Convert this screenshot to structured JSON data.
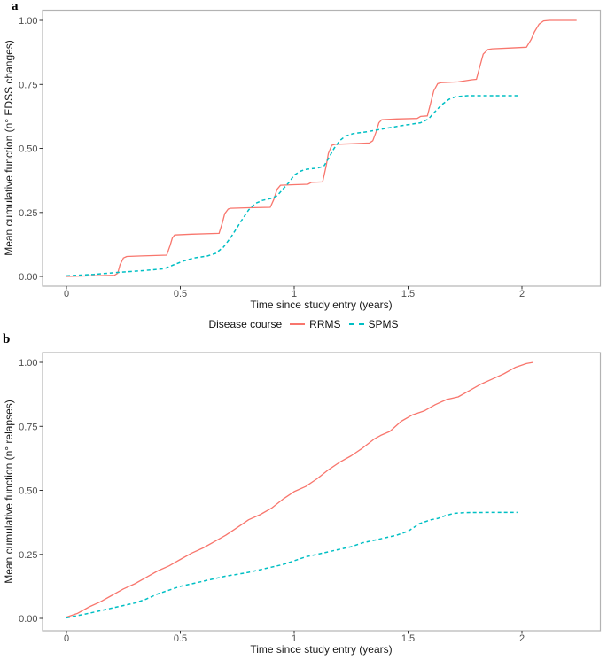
{
  "chart_data": {
    "type": "line",
    "figure_kind": "mean cumulative function step/line plot, two stacked panels",
    "legend": {
      "title": "Disease course",
      "entries": [
        {
          "label": "RRMS",
          "color": "#F8766D",
          "line_style": "solid"
        },
        {
          "label": "SPMS",
          "color": "#00BFC4",
          "line_style": "dashed"
        }
      ]
    },
    "panels": [
      {
        "panel_label": "a",
        "xlabel": "Time since study entry (years)",
        "ylabel": "Mean cumulative function (n° EDSS changes)",
        "xlim": [
          -0.105,
          2.345
        ],
        "ylim": [
          -0.038,
          1.039
        ],
        "grid": false,
        "x_ticks": [
          {
            "value": 0,
            "label": "0"
          },
          {
            "value": 0.5,
            "label": "0.5"
          },
          {
            "value": 1,
            "label": "1"
          },
          {
            "value": 1.5,
            "label": "1.5"
          },
          {
            "value": 2,
            "label": "2"
          }
        ],
        "y_ticks": [
          {
            "value": 0,
            "label": "0.00"
          },
          {
            "value": 0.25,
            "label": "0.25"
          },
          {
            "value": 0.5,
            "label": "0.50"
          },
          {
            "value": 0.75,
            "label": "0.75"
          },
          {
            "value": 1,
            "label": "1.00"
          }
        ],
        "series": [
          {
            "name": "RRMS",
            "color": "#F8766D",
            "line_style": "solid",
            "points": [
              [
                0,
                0
              ],
              [
                0.1,
                0.002
              ],
              [
                0.21,
                0.004
              ],
              [
                0.225,
                0.012
              ],
              [
                0.235,
                0.045
              ],
              [
                0.25,
                0.072
              ],
              [
                0.265,
                0.078
              ],
              [
                0.33,
                0.08
              ],
              [
                0.44,
                0.083
              ],
              [
                0.455,
                0.12
              ],
              [
                0.465,
                0.15
              ],
              [
                0.475,
                0.162
              ],
              [
                0.55,
                0.165
              ],
              [
                0.67,
                0.168
              ],
              [
                0.685,
                0.21
              ],
              [
                0.695,
                0.245
              ],
              [
                0.71,
                0.263
              ],
              [
                0.72,
                0.266
              ],
              [
                0.8,
                0.268
              ],
              [
                0.895,
                0.27
              ],
              [
                0.91,
                0.3
              ],
              [
                0.925,
                0.34
              ],
              [
                0.94,
                0.356
              ],
              [
                1.0,
                0.358
              ],
              [
                1.06,
                0.36
              ],
              [
                1.075,
                0.367
              ],
              [
                1.125,
                0.369
              ],
              [
                1.14,
                0.43
              ],
              [
                1.15,
                0.48
              ],
              [
                1.165,
                0.512
              ],
              [
                1.18,
                0.516
              ],
              [
                1.25,
                0.518
              ],
              [
                1.33,
                0.521
              ],
              [
                1.345,
                0.53
              ],
              [
                1.36,
                0.565
              ],
              [
                1.372,
                0.6
              ],
              [
                1.385,
                0.612
              ],
              [
                1.45,
                0.615
              ],
              [
                1.54,
                0.617
              ],
              [
                1.555,
                0.625
              ],
              [
                1.585,
                0.627
              ],
              [
                1.6,
                0.68
              ],
              [
                1.613,
                0.725
              ],
              [
                1.63,
                0.753
              ],
              [
                1.645,
                0.757
              ],
              [
                1.72,
                0.76
              ],
              [
                1.78,
                0.768
              ],
              [
                1.8,
                0.77
              ],
              [
                1.815,
                0.82
              ],
              [
                1.83,
                0.868
              ],
              [
                1.85,
                0.886
              ],
              [
                1.87,
                0.889
              ],
              [
                1.95,
                0.892
              ],
              [
                2.02,
                0.895
              ],
              [
                2.04,
                0.925
              ],
              [
                2.055,
                0.955
              ],
              [
                2.075,
                0.985
              ],
              [
                2.095,
                0.998
              ],
              [
                2.12,
                1.0
              ],
              [
                2.24,
                1.0
              ]
            ]
          },
          {
            "name": "SPMS",
            "color": "#00BFC4",
            "line_style": "dashed",
            "points": [
              [
                0,
                0.002
              ],
              [
                0.12,
                0.008
              ],
              [
                0.23,
                0.016
              ],
              [
                0.33,
                0.022
              ],
              [
                0.43,
                0.03
              ],
              [
                0.47,
                0.045
              ],
              [
                0.52,
                0.062
              ],
              [
                0.56,
                0.072
              ],
              [
                0.62,
                0.08
              ],
              [
                0.655,
                0.09
              ],
              [
                0.69,
                0.115
              ],
              [
                0.72,
                0.15
              ],
              [
                0.745,
                0.185
              ],
              [
                0.77,
                0.22
              ],
              [
                0.8,
                0.26
              ],
              [
                0.83,
                0.285
              ],
              [
                0.86,
                0.297
              ],
              [
                0.9,
                0.305
              ],
              [
                0.925,
                0.315
              ],
              [
                0.95,
                0.34
              ],
              [
                0.975,
                0.365
              ],
              [
                1.0,
                0.395
              ],
              [
                1.025,
                0.41
              ],
              [
                1.05,
                0.418
              ],
              [
                1.1,
                0.423
              ],
              [
                1.13,
                0.43
              ],
              [
                1.15,
                0.46
              ],
              [
                1.175,
                0.5
              ],
              [
                1.2,
                0.53
              ],
              [
                1.225,
                0.548
              ],
              [
                1.26,
                0.558
              ],
              [
                1.32,
                0.565
              ],
              [
                1.4,
                0.578
              ],
              [
                1.48,
                0.59
              ],
              [
                1.555,
                0.6
              ],
              [
                1.59,
                0.615
              ],
              [
                1.62,
                0.645
              ],
              [
                1.65,
                0.672
              ],
              [
                1.68,
                0.692
              ],
              [
                1.71,
                0.702
              ],
              [
                1.76,
                0.706
              ],
              [
                1.99,
                0.706
              ]
            ]
          }
        ]
      },
      {
        "panel_label": "b",
        "xlabel": "Time since study entry (years)",
        "ylabel": "Mean cumulative function (n° relapses)",
        "xlim": [
          -0.105,
          2.345
        ],
        "ylim": [
          -0.048,
          1.038
        ],
        "grid": false,
        "x_ticks": [
          {
            "value": 0,
            "label": "0"
          },
          {
            "value": 0.5,
            "label": "0.5"
          },
          {
            "value": 1,
            "label": "1"
          },
          {
            "value": 1.5,
            "label": "1.5"
          },
          {
            "value": 2,
            "label": "2"
          }
        ],
        "y_ticks": [
          {
            "value": 0,
            "label": "0.00"
          },
          {
            "value": 0.25,
            "label": "0.25"
          },
          {
            "value": 0.5,
            "label": "0.50"
          },
          {
            "value": 0.75,
            "label": "0.75"
          },
          {
            "value": 1,
            "label": "1.00"
          }
        ],
        "series": [
          {
            "name": "RRMS",
            "color": "#F8766D",
            "line_style": "solid",
            "points": [
              [
                0,
                0.005
              ],
              [
                0.05,
                0.02
              ],
              [
                0.1,
                0.045
              ],
              [
                0.15,
                0.065
              ],
              [
                0.2,
                0.09
              ],
              [
                0.25,
                0.115
              ],
              [
                0.3,
                0.135
              ],
              [
                0.35,
                0.16
              ],
              [
                0.4,
                0.185
              ],
              [
                0.45,
                0.205
              ],
              [
                0.5,
                0.23
              ],
              [
                0.55,
                0.255
              ],
              [
                0.6,
                0.275
              ],
              [
                0.65,
                0.3
              ],
              [
                0.7,
                0.325
              ],
              [
                0.75,
                0.355
              ],
              [
                0.8,
                0.385
              ],
              [
                0.85,
                0.405
              ],
              [
                0.9,
                0.43
              ],
              [
                0.95,
                0.465
              ],
              [
                1.0,
                0.495
              ],
              [
                1.05,
                0.515
              ],
              [
                1.1,
                0.545
              ],
              [
                1.15,
                0.58
              ],
              [
                1.2,
                0.61
              ],
              [
                1.25,
                0.635
              ],
              [
                1.3,
                0.665
              ],
              [
                1.35,
                0.7
              ],
              [
                1.38,
                0.715
              ],
              [
                1.42,
                0.73
              ],
              [
                1.47,
                0.77
              ],
              [
                1.52,
                0.795
              ],
              [
                1.57,
                0.81
              ],
              [
                1.62,
                0.835
              ],
              [
                1.67,
                0.855
              ],
              [
                1.72,
                0.865
              ],
              [
                1.77,
                0.89
              ],
              [
                1.82,
                0.915
              ],
              [
                1.87,
                0.935
              ],
              [
                1.92,
                0.955
              ],
              [
                1.97,
                0.98
              ],
              [
                2.02,
                0.995
              ],
              [
                2.05,
                1.0
              ]
            ]
          },
          {
            "name": "SPMS",
            "color": "#00BFC4",
            "line_style": "dashed",
            "points": [
              [
                0,
                0.002
              ],
              [
                0.1,
                0.02
              ],
              [
                0.2,
                0.04
              ],
              [
                0.3,
                0.06
              ],
              [
                0.35,
                0.075
              ],
              [
                0.4,
                0.095
              ],
              [
                0.45,
                0.11
              ],
              [
                0.5,
                0.125
              ],
              [
                0.55,
                0.135
              ],
              [
                0.6,
                0.145
              ],
              [
                0.65,
                0.155
              ],
              [
                0.7,
                0.165
              ],
              [
                0.75,
                0.172
              ],
              [
                0.8,
                0.18
              ],
              [
                0.85,
                0.19
              ],
              [
                0.9,
                0.2
              ],
              [
                0.95,
                0.21
              ],
              [
                1.0,
                0.225
              ],
              [
                1.05,
                0.24
              ],
              [
                1.1,
                0.25
              ],
              [
                1.15,
                0.26
              ],
              [
                1.2,
                0.27
              ],
              [
                1.25,
                0.28
              ],
              [
                1.3,
                0.295
              ],
              [
                1.35,
                0.305
              ],
              [
                1.4,
                0.315
              ],
              [
                1.45,
                0.325
              ],
              [
                1.5,
                0.34
              ],
              [
                1.55,
                0.37
              ],
              [
                1.6,
                0.385
              ],
              [
                1.63,
                0.39
              ],
              [
                1.66,
                0.4
              ],
              [
                1.7,
                0.41
              ],
              [
                1.75,
                0.413
              ],
              [
                1.85,
                0.414
              ],
              [
                1.98,
                0.414
              ]
            ]
          }
        ]
      }
    ],
    "style": {
      "panel_border_color": "#b3b3b3",
      "tick_color": "#333333",
      "tick_label_color": "#4d4d4d",
      "background": "#ffffff"
    }
  }
}
